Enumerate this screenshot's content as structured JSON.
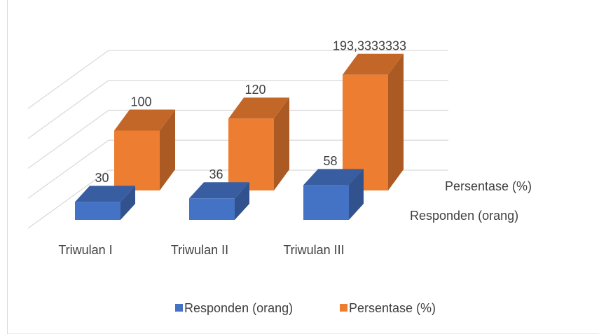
{
  "chart_data": {
    "type": "bar3d",
    "categories": [
      "Triwulan I",
      "Triwulan II",
      "Triwulan III"
    ],
    "series": [
      {
        "name": "Responden (orang)",
        "color": "#4472c4",
        "values": [
          30,
          36,
          58
        ]
      },
      {
        "name": "Persentase (%)",
        "color": "#ed7d31",
        "values": [
          100,
          120,
          193.3333333
        ],
        "value_labels": [
          "100",
          "120",
          "193,3333333"
        ]
      }
    ],
    "ylim": [
      0,
      200
    ],
    "yticks": [
      0,
      50,
      100,
      150,
      200
    ],
    "grid": true,
    "legend": "bottom"
  }
}
